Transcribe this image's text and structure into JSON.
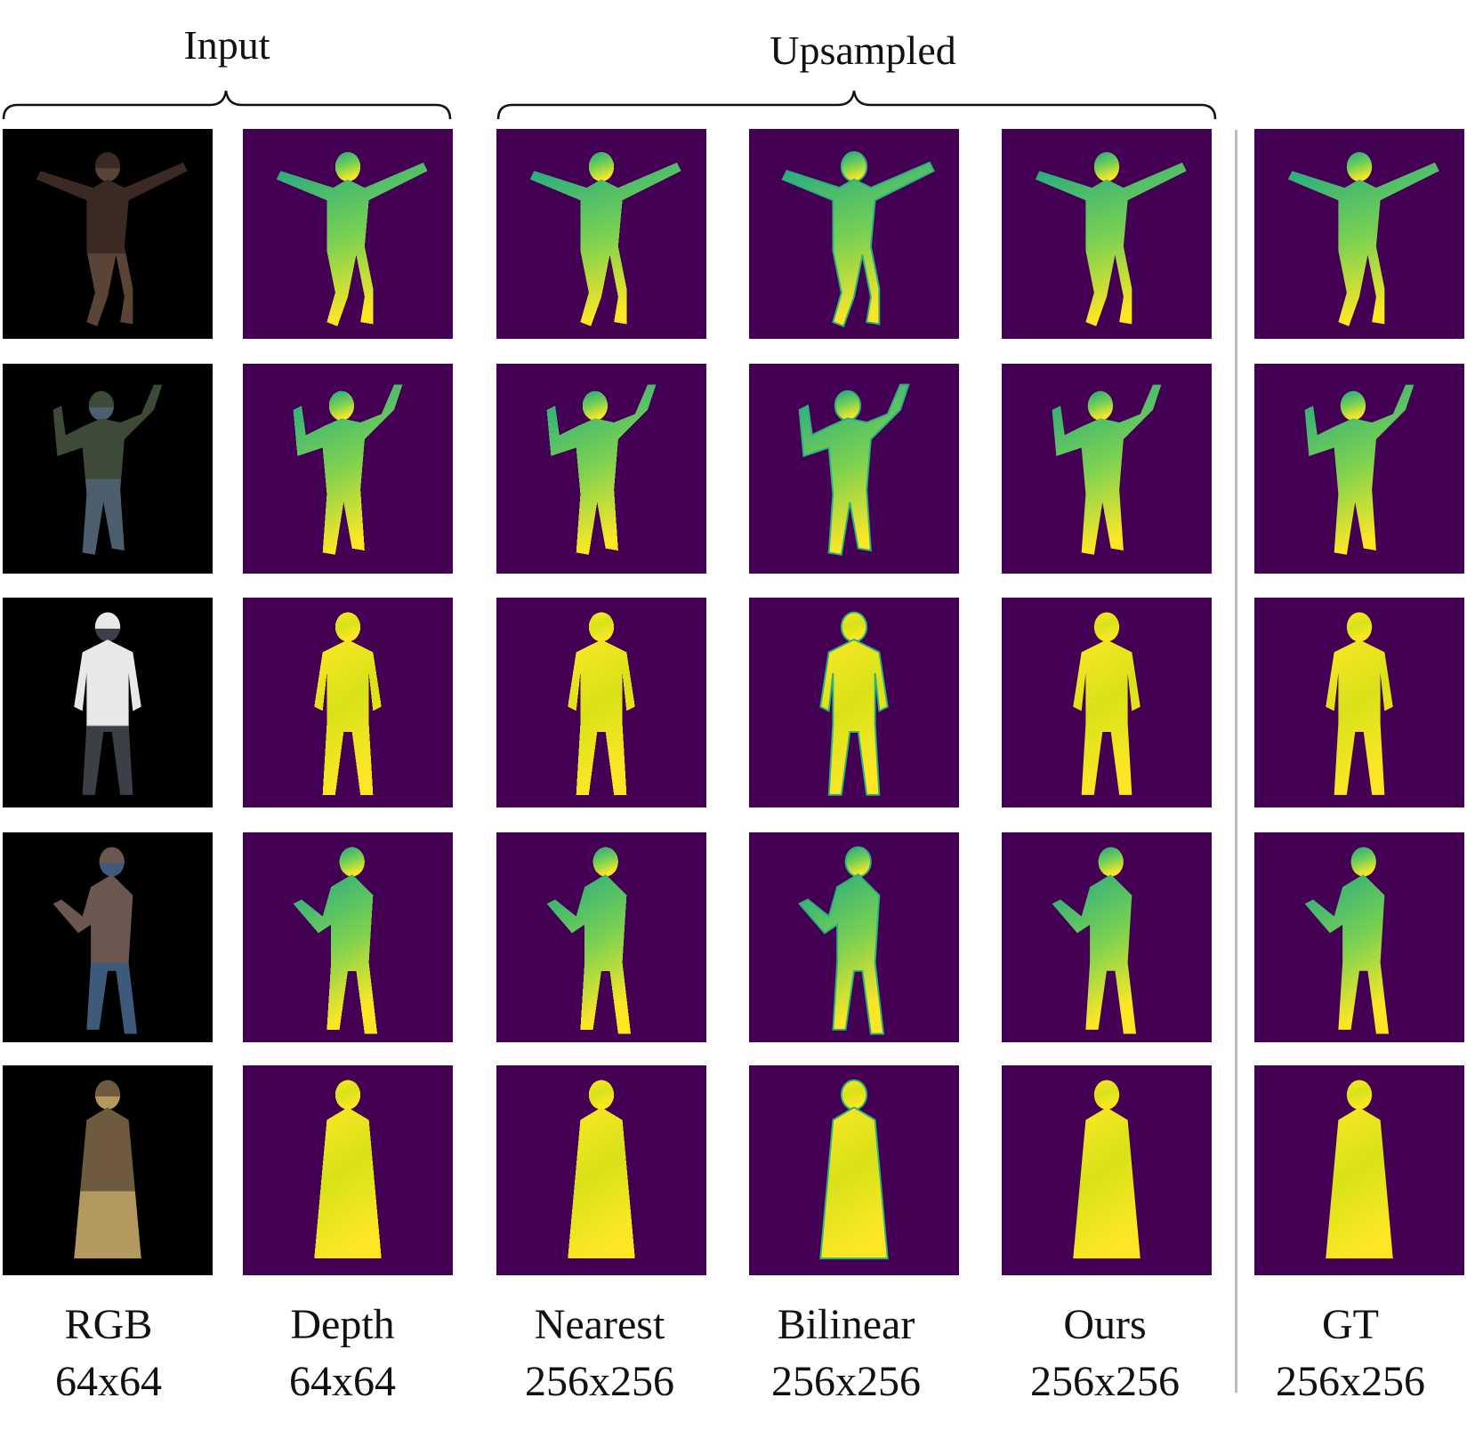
{
  "figure": {
    "groups": [
      {
        "id": "input",
        "label": "Input"
      },
      {
        "id": "upsampled",
        "label": "Upsampled"
      }
    ],
    "columns": [
      {
        "id": "rgb",
        "name": "RGB",
        "res": "64x64"
      },
      {
        "id": "depth",
        "name": "Depth",
        "res": "64x64"
      },
      {
        "id": "nearest",
        "name": "Nearest",
        "res": "256x256"
      },
      {
        "id": "bilinear",
        "name": "Bilinear",
        "res": "256x256"
      },
      {
        "id": "ours",
        "name": "Ours",
        "res": "256x256"
      },
      {
        "id": "gt",
        "name": "GT",
        "res": "256x256"
      }
    ],
    "rows": [
      {
        "pose": "arms-out"
      },
      {
        "pose": "arm-raised"
      },
      {
        "pose": "standing"
      },
      {
        "pose": "gesture"
      },
      {
        "pose": "robe"
      }
    ],
    "colors": {
      "depth_background": "#440154",
      "rgb_background": "#000000",
      "depth_far": "#22a884",
      "depth_mid": "#7ad151",
      "depth_near": "#fde725"
    }
  }
}
